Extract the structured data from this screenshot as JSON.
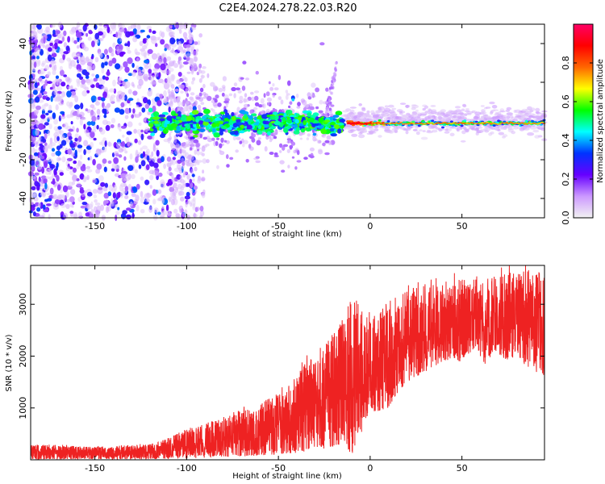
{
  "title": "C2E4.2024.278.22.03.R20",
  "chart_data": [
    {
      "type": "heatmap",
      "xlabel": "Height of straight line (km)",
      "ylabel": "Frequency (Hz)",
      "xlim": [
        -185,
        95
      ],
      "ylim": [
        -50,
        50
      ],
      "x_ticks": [
        -150,
        -100,
        -50,
        0,
        50
      ],
      "y_ticks": [
        -40,
        -20,
        0,
        20,
        40
      ],
      "colorbar": {
        "label": "Normalized spectral amplitude",
        "range": [
          0,
          1
        ],
        "ticks": [
          "0.0",
          "0.2",
          "0.4",
          "0.6",
          "0.8"
        ],
        "tick_values": [
          0.0,
          0.2,
          0.4,
          0.6,
          0.8
        ],
        "colors": [
          "#f2f2f2",
          "#cc99ff",
          "#6600ff",
          "#0033ff",
          "#00ffff",
          "#00ff00",
          "#ffff00",
          "#ff6600",
          "#ff0000",
          "#ff0066"
        ]
      }
    },
    {
      "type": "line",
      "xlabel": "Height of straight line (km)",
      "ylabel": "SNR (10 * v/v)",
      "xlim": [
        -185,
        95
      ],
      "ylim": [
        0,
        3750
      ],
      "x_ticks": [
        -150,
        -100,
        -50,
        0,
        50
      ],
      "y_ticks": [
        1000,
        2000,
        3000
      ],
      "color": "#ee2222",
      "envelope": {
        "x": [
          -185,
          -150,
          -120,
          -105,
          -90,
          -75,
          -60,
          -45,
          -35,
          -25,
          -15,
          -10,
          -5,
          0,
          10,
          15,
          20,
          30,
          40,
          50,
          58,
          62,
          68,
          75,
          80,
          85,
          90,
          95
        ],
        "lo": [
          10,
          10,
          10,
          20,
          40,
          60,
          80,
          120,
          150,
          200,
          300,
          100,
          500,
          900,
          1000,
          1300,
          1500,
          1700,
          1900,
          1900,
          2200,
          1800,
          2100,
          1900,
          2000,
          1800,
          1700,
          1600
        ],
        "hi": [
          300,
          250,
          300,
          500,
          700,
          900,
          1100,
          1400,
          1900,
          2300,
          2600,
          3300,
          2900,
          2700,
          2900,
          3100,
          3350,
          3400,
          3450,
          3500,
          3550,
          3500,
          3550,
          3600,
          3600,
          3650,
          3700,
          3700
        ]
      }
    }
  ]
}
